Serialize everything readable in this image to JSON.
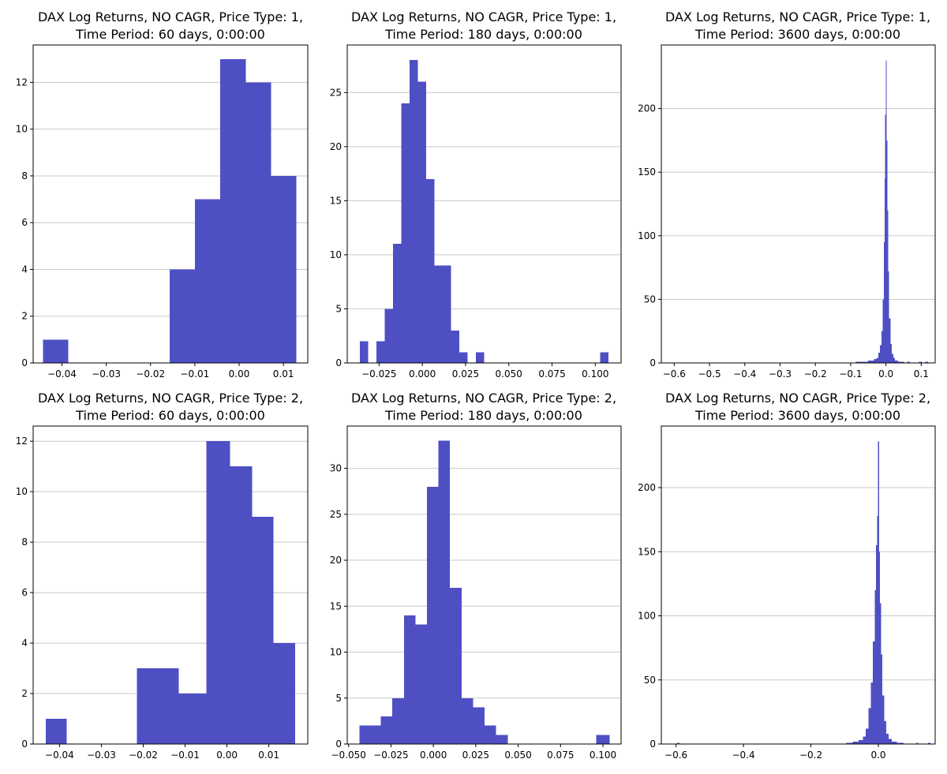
{
  "figure": {
    "bar_color": "#4f4fc4",
    "grid_color": "#c8c8c8",
    "axis_color": "#000000"
  },
  "chart_data": [
    {
      "type": "bar",
      "title": [
        "DAX Log Returns, NO CAGR, Price Type: 1,",
        "Time Period: 60 days, 0:00:00"
      ],
      "xlim": [
        -0.0465,
        0.0155
      ],
      "ylim": [
        0,
        13.6
      ],
      "grid": {
        "x": false,
        "y": true
      },
      "xticks": [
        {
          "v": -0.04,
          "label": "−0.04"
        },
        {
          "v": -0.03,
          "label": "−0.03"
        },
        {
          "v": -0.02,
          "label": "−0.02"
        },
        {
          "v": -0.01,
          "label": "−0.01"
        },
        {
          "v": 0.0,
          "label": "0.00"
        },
        {
          "v": 0.01,
          "label": "0.01"
        }
      ],
      "yticks": [
        {
          "v": 0,
          "label": "0"
        },
        {
          "v": 2,
          "label": "2"
        },
        {
          "v": 4,
          "label": "4"
        },
        {
          "v": 6,
          "label": "6"
        },
        {
          "v": 8,
          "label": "8"
        },
        {
          "v": 10,
          "label": "10"
        },
        {
          "v": 12,
          "label": "12"
        }
      ],
      "bins": [
        [
          -0.0443,
          -0.0386,
          1
        ],
        [
          -0.0386,
          -0.0329,
          0
        ],
        [
          -0.0329,
          -0.0271,
          0
        ],
        [
          -0.0271,
          -0.0214,
          0
        ],
        [
          -0.0214,
          -0.0157,
          0
        ],
        [
          -0.0157,
          -0.01,
          4
        ],
        [
          -0.01,
          -0.0043,
          7
        ],
        [
          -0.0043,
          0.0015,
          13
        ],
        [
          0.0015,
          0.0072,
          12
        ],
        [
          0.0072,
          0.0129,
          8
        ]
      ]
    },
    {
      "type": "bar",
      "title": [
        "DAX Log Returns, NO CAGR, Price Type: 1,",
        "Time Period: 180 days, 0:00:00"
      ],
      "xlim": [
        -0.0434,
        0.1149
      ],
      "ylim": [
        0,
        29.4
      ],
      "grid": {
        "x": false,
        "y": true
      },
      "xticks": [
        {
          "v": -0.025,
          "label": "−0.025"
        },
        {
          "v": 0.0,
          "label": "0.000"
        },
        {
          "v": 0.025,
          "label": "0.025"
        },
        {
          "v": 0.05,
          "label": "0.050"
        },
        {
          "v": 0.075,
          "label": "0.075"
        },
        {
          "v": 0.1,
          "label": "0.100"
        }
      ],
      "yticks": [
        {
          "v": 0,
          "label": "0"
        },
        {
          "v": 5,
          "label": "5"
        },
        {
          "v": 10,
          "label": "10"
        },
        {
          "v": 15,
          "label": "15"
        },
        {
          "v": 20,
          "label": "20"
        },
        {
          "v": 25,
          "label": "25"
        }
      ],
      "bins": [
        [
          -0.0362,
          -0.0314,
          2
        ],
        [
          -0.0314,
          -0.0266,
          0
        ],
        [
          -0.0266,
          -0.0218,
          2
        ],
        [
          -0.0218,
          -0.017,
          5
        ],
        [
          -0.017,
          -0.0122,
          11
        ],
        [
          -0.0122,
          -0.0074,
          24
        ],
        [
          -0.0074,
          -0.0026,
          28
        ],
        [
          -0.0026,
          0.0022,
          26
        ],
        [
          0.0022,
          0.007,
          17
        ],
        [
          0.007,
          0.0118,
          9
        ],
        [
          0.0118,
          0.0166,
          9
        ],
        [
          0.0166,
          0.0214,
          3
        ],
        [
          0.0214,
          0.0262,
          1
        ],
        [
          0.0262,
          0.031,
          0
        ],
        [
          0.031,
          0.0358,
          1
        ],
        [
          0.0358,
          0.1029,
          0
        ],
        [
          0.1029,
          0.1077,
          1
        ]
      ]
    },
    {
      "type": "bar",
      "title": [
        "DAX Log Returns, NO CAGR, Price Type: 1,",
        "Time Period: 3600 days, 0:00:00"
      ],
      "xlim": [
        -0.6365,
        0.1395
      ],
      "ylim": [
        0,
        250
      ],
      "grid": {
        "x": false,
        "y": true
      },
      "xticks": [
        {
          "v": -0.6,
          "label": "−0.6"
        },
        {
          "v": -0.5,
          "label": "−0.5"
        },
        {
          "v": -0.4,
          "label": "−0.4"
        },
        {
          "v": -0.3,
          "label": "−0.3"
        },
        {
          "v": -0.2,
          "label": "−0.2"
        },
        {
          "v": -0.1,
          "label": "−0.1"
        },
        {
          "v": 0.0,
          "label": "0.0"
        },
        {
          "v": 0.1,
          "label": "0.1"
        }
      ],
      "yticks": [
        {
          "v": 0,
          "label": "0"
        },
        {
          "v": 50,
          "label": "50"
        },
        {
          "v": 100,
          "label": "100"
        },
        {
          "v": 150,
          "label": "150"
        },
        {
          "v": 200,
          "label": "200"
        }
      ],
      "bins": [
        [
          -0.085,
          -0.068,
          1
        ],
        [
          -0.068,
          -0.051,
          1
        ],
        [
          -0.051,
          -0.043,
          2
        ],
        [
          -0.043,
          -0.034,
          2
        ],
        [
          -0.034,
          -0.026,
          3
        ],
        [
          -0.026,
          -0.021,
          4
        ],
        [
          -0.021,
          -0.017,
          8
        ],
        [
          -0.017,
          -0.013,
          14
        ],
        [
          -0.013,
          -0.009,
          25
        ],
        [
          -0.009,
          -0.006,
          50
        ],
        [
          -0.006,
          -0.004,
          95
        ],
        [
          -0.004,
          -0.002,
          145
        ],
        [
          -0.002,
          0.0,
          195
        ],
        [
          0.0,
          0.002,
          238
        ],
        [
          0.002,
          0.004,
          175
        ],
        [
          0.004,
          0.006,
          120
        ],
        [
          0.006,
          0.009,
          72
        ],
        [
          0.009,
          0.013,
          35
        ],
        [
          0.013,
          0.017,
          15
        ],
        [
          0.017,
          0.021,
          7
        ],
        [
          0.021,
          0.026,
          4
        ],
        [
          0.026,
          0.034,
          2
        ],
        [
          0.034,
          0.043,
          1
        ],
        [
          0.043,
          0.051,
          1
        ],
        [
          0.06,
          0.068,
          1
        ],
        [
          0.094,
          0.102,
          1
        ],
        [
          0.111,
          0.119,
          1
        ]
      ]
    },
    {
      "type": "bar",
      "title": [
        "DAX Log Returns, NO CAGR, Price Type: 2,",
        "Time Period: 60 days, 0:00:00"
      ],
      "xlim": [
        -0.0463,
        0.0193
      ],
      "ylim": [
        0,
        12.6
      ],
      "grid": {
        "x": false,
        "y": true
      },
      "xticks": [
        {
          "v": -0.04,
          "label": "−0.04"
        },
        {
          "v": -0.03,
          "label": "−0.03"
        },
        {
          "v": -0.02,
          "label": "−0.02"
        },
        {
          "v": -0.01,
          "label": "−0.01"
        },
        {
          "v": 0.0,
          "label": "0.00"
        },
        {
          "v": 0.01,
          "label": "0.01"
        }
      ],
      "yticks": [
        {
          "v": 0,
          "label": "0"
        },
        {
          "v": 2,
          "label": "2"
        },
        {
          "v": 4,
          "label": "4"
        },
        {
          "v": 6,
          "label": "6"
        },
        {
          "v": 8,
          "label": "8"
        },
        {
          "v": 10,
          "label": "10"
        },
        {
          "v": 12,
          "label": "12"
        }
      ],
      "bins": [
        [
          -0.0433,
          -0.0383,
          1
        ],
        [
          -0.0383,
          -0.0333,
          0
        ],
        [
          -0.0333,
          -0.0283,
          0
        ],
        [
          -0.0283,
          -0.0215,
          0
        ],
        [
          -0.0215,
          -0.0115,
          3
        ],
        [
          -0.0115,
          -0.0049,
          2
        ],
        [
          -0.0049,
          0.0007,
          12
        ],
        [
          0.0007,
          0.006,
          11
        ],
        [
          0.006,
          0.0111,
          9
        ],
        [
          0.0111,
          0.0163,
          4
        ]
      ]
    },
    {
      "type": "bar",
      "title": [
        "DAX Log Returns, NO CAGR, Price Type: 2,",
        "Time Period: 180 days, 0:00:00"
      ],
      "xlim": [
        -0.0508,
        0.1107
      ],
      "ylim": [
        0,
        34.6
      ],
      "grid": {
        "x": false,
        "y": true
      },
      "xticks": [
        {
          "v": -0.05,
          "label": "−0.050"
        },
        {
          "v": -0.025,
          "label": "−0.025"
        },
        {
          "v": 0.0,
          "label": "0.000"
        },
        {
          "v": 0.025,
          "label": "0.025"
        },
        {
          "v": 0.05,
          "label": "0.050"
        },
        {
          "v": 0.075,
          "label": "0.075"
        },
        {
          "v": 0.1,
          "label": "0.100"
        }
      ],
      "yticks": [
        {
          "v": 0,
          "label": "0"
        },
        {
          "v": 5,
          "label": "5"
        },
        {
          "v": 10,
          "label": "10"
        },
        {
          "v": 15,
          "label": "15"
        },
        {
          "v": 20,
          "label": "20"
        },
        {
          "v": 25,
          "label": "25"
        },
        {
          "v": 30,
          "label": "30"
        }
      ],
      "bins": [
        [
          -0.0437,
          -0.031,
          2
        ],
        [
          -0.031,
          -0.0242,
          3
        ],
        [
          -0.0242,
          -0.0174,
          5
        ],
        [
          -0.0174,
          -0.0106,
          14
        ],
        [
          -0.0106,
          -0.0038,
          13
        ],
        [
          -0.0038,
          0.003,
          28
        ],
        [
          0.003,
          0.0098,
          33
        ],
        [
          0.0098,
          0.0166,
          17
        ],
        [
          0.0166,
          0.0234,
          5
        ],
        [
          0.0234,
          0.0302,
          4
        ],
        [
          0.0302,
          0.037,
          2
        ],
        [
          0.037,
          0.0438,
          1
        ],
        [
          0.0438,
          0.096,
          0
        ],
        [
          0.096,
          0.104,
          1
        ]
      ]
    },
    {
      "type": "bar",
      "title": [
        "DAX Log Returns, NO CAGR, Price Type: 2,",
        "Time Period: 3600 days, 0:00:00"
      ],
      "xlim": [
        -0.6435,
        0.1685
      ],
      "ylim": [
        0,
        248
      ],
      "grid": {
        "x": false,
        "y": true
      },
      "xticks": [
        {
          "v": -0.6,
          "label": "−0.6"
        },
        {
          "v": -0.4,
          "label": "−0.4"
        },
        {
          "v": -0.2,
          "label": "−0.2"
        },
        {
          "v": 0.0,
          "label": "0.0"
        }
      ],
      "yticks": [
        {
          "v": 0,
          "label": "0"
        },
        {
          "v": 50,
          "label": "50"
        },
        {
          "v": 100,
          "label": "100"
        },
        {
          "v": 150,
          "label": "150"
        },
        {
          "v": 200,
          "label": "200"
        }
      ],
      "bins": [
        [
          -0.597,
          -0.59,
          1
        ],
        [
          -0.095,
          -0.076,
          1
        ],
        [
          -0.076,
          -0.058,
          2
        ],
        [
          -0.058,
          -0.046,
          3
        ],
        [
          -0.046,
          -0.037,
          6
        ],
        [
          -0.037,
          -0.029,
          12
        ],
        [
          -0.029,
          -0.022,
          28
        ],
        [
          -0.022,
          -0.016,
          48
        ],
        [
          -0.016,
          -0.011,
          80
        ],
        [
          -0.011,
          -0.007,
          120
        ],
        [
          -0.007,
          -0.004,
          155
        ],
        [
          -0.004,
          -0.001,
          178
        ],
        [
          -0.001,
          0.002,
          236
        ],
        [
          0.002,
          0.005,
          150
        ],
        [
          0.005,
          0.008,
          110
        ],
        [
          0.008,
          0.012,
          70
        ],
        [
          0.012,
          0.017,
          38
        ],
        [
          0.017,
          0.023,
          18
        ],
        [
          0.023,
          0.03,
          8
        ],
        [
          0.03,
          0.04,
          4
        ],
        [
          0.04,
          0.055,
          2
        ],
        [
          0.055,
          0.075,
          1
        ],
        [
          0.112,
          0.118,
          1
        ],
        [
          0.148,
          0.154,
          1
        ]
      ]
    }
  ]
}
